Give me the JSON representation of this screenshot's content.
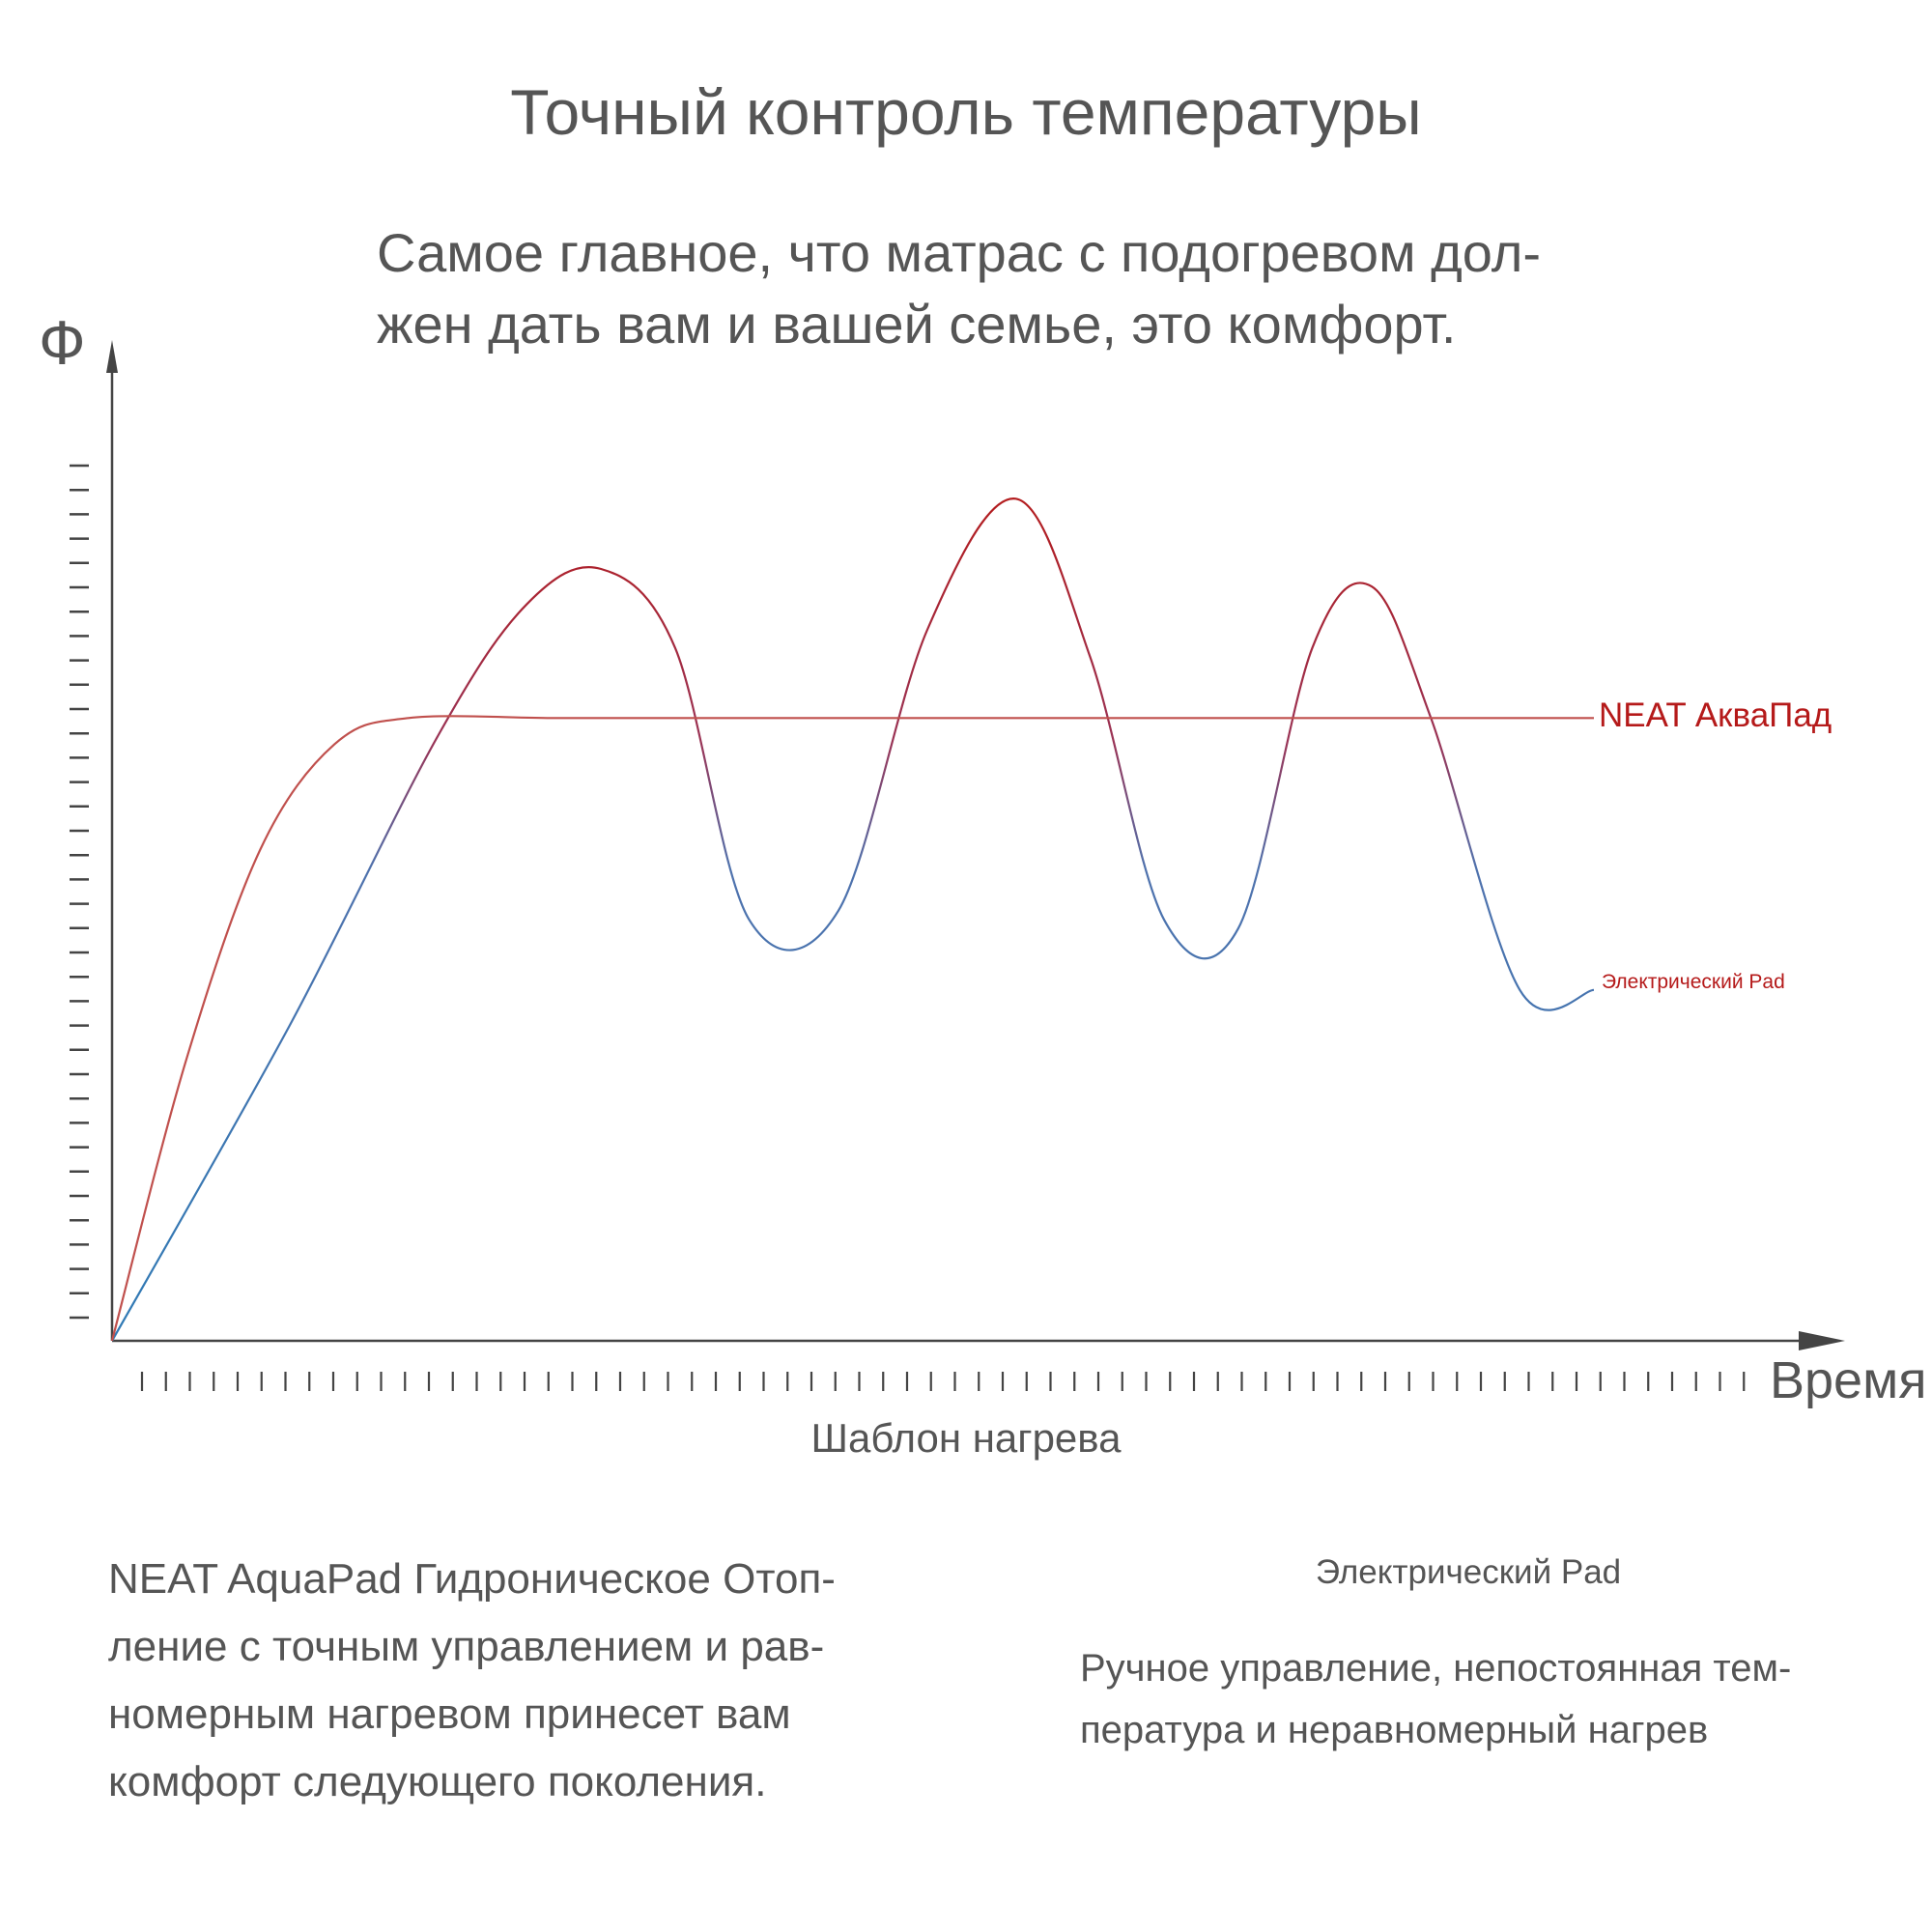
{
  "title": "Точный контроль температуры",
  "subtitle_line1": "Самое главное, что матрас с подогревом дол-",
  "subtitle_line2": "жен дать вам и вашей семье, это комфорт.",
  "colors": {
    "neat": "#c0504d",
    "electric_rise": "#2f7ab5",
    "electric_peak": "#b51a1a",
    "label": "#b51a1a",
    "axis": "#444444"
  },
  "chart_data": {
    "type": "line",
    "ylabel": "Ф",
    "xlabel": "Время",
    "caption": "Шаблон нагрева",
    "xlim": [
      0,
      1
    ],
    "ylim": [
      0,
      1
    ],
    "grid": false,
    "series": [
      {
        "name": "NEAT АкваПад",
        "x": [
          0,
          0.05,
          0.1,
          0.15,
          0.2,
          0.3,
          0.4,
          0.6,
          0.8,
          1.0
        ],
        "y": [
          0,
          0.32,
          0.56,
          0.68,
          0.71,
          0.71,
          0.71,
          0.71,
          0.71,
          0.71
        ]
      },
      {
        "name": "Электрический Pad",
        "x": [
          0,
          0.12,
          0.22,
          0.28,
          0.33,
          0.38,
          0.43,
          0.49,
          0.55,
          0.61,
          0.66,
          0.71,
          0.76,
          0.81,
          0.85,
          0.89,
          0.95,
          1.0
        ],
        "y": [
          0,
          0.36,
          0.69,
          0.84,
          0.88,
          0.79,
          0.48,
          0.49,
          0.81,
          0.96,
          0.78,
          0.48,
          0.47,
          0.79,
          0.86,
          0.71,
          0.4,
          0.4
        ]
      }
    ]
  },
  "desc_left": "NEAT AquaPad Гидроническое Отоп- ление с точным управлением и рав- номерным нагревом принесет вам комфорт следующего поколения.",
  "desc_right_head": "Электрический Pad",
  "desc_right": "Ручное управление, непостоянная тем- пература и неравномерный нагрев"
}
